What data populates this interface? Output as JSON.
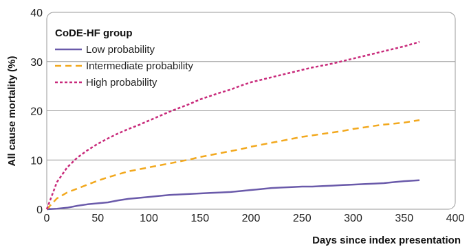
{
  "chart_data": {
    "type": "line",
    "xlabel": "Days since index presentation",
    "ylabel": "All cause mortality (%)",
    "xlim": [
      0,
      400
    ],
    "ylim": [
      0,
      40
    ],
    "x_ticks": [
      "0",
      "50",
      "100",
      "150",
      "200",
      "250",
      "300",
      "350",
      "400"
    ],
    "y_ticks": [
      "0",
      "10",
      "20",
      "30",
      "40"
    ],
    "grid": "horizontal",
    "legend": {
      "title": "CoDE-HF group",
      "placement": "top-left"
    },
    "series": [
      {
        "name": "Low probability",
        "color": "#6a5aaa",
        "dash": "solid",
        "x": [
          0,
          10,
          20,
          30,
          40,
          50,
          60,
          70,
          80,
          90,
          100,
          110,
          120,
          130,
          140,
          150,
          160,
          170,
          180,
          190,
          200,
          210,
          220,
          230,
          240,
          250,
          260,
          270,
          280,
          290,
          300,
          310,
          320,
          330,
          340,
          350,
          365
        ],
        "y": [
          0,
          0.1,
          0.3,
          0.7,
          1.0,
          1.2,
          1.4,
          1.8,
          2.1,
          2.3,
          2.5,
          2.7,
          2.9,
          3.0,
          3.1,
          3.2,
          3.3,
          3.4,
          3.5,
          3.7,
          3.9,
          4.1,
          4.3,
          4.4,
          4.5,
          4.6,
          4.6,
          4.7,
          4.8,
          4.9,
          5.0,
          5.1,
          5.2,
          5.3,
          5.5,
          5.7,
          5.9
        ]
      },
      {
        "name": "Intermediate probability",
        "color": "#f2a81d",
        "dash": "dashed",
        "x": [
          0,
          10,
          20,
          30,
          40,
          50,
          60,
          70,
          80,
          90,
          100,
          110,
          120,
          130,
          140,
          150,
          160,
          170,
          180,
          190,
          200,
          210,
          220,
          230,
          240,
          250,
          260,
          270,
          280,
          290,
          300,
          310,
          320,
          330,
          340,
          350,
          365
        ],
        "y": [
          0,
          2.2,
          3.4,
          4.2,
          5.0,
          5.8,
          6.5,
          7.1,
          7.7,
          8.1,
          8.5,
          8.9,
          9.3,
          9.7,
          10.1,
          10.6,
          11.0,
          11.4,
          11.8,
          12.2,
          12.7,
          13.1,
          13.5,
          13.9,
          14.3,
          14.7,
          15.0,
          15.3,
          15.6,
          15.9,
          16.3,
          16.6,
          16.9,
          17.2,
          17.4,
          17.6,
          18.1
        ]
      },
      {
        "name": "High probability",
        "color": "#c8297a",
        "dash": "dotted",
        "x": [
          0,
          10,
          20,
          30,
          40,
          50,
          60,
          70,
          80,
          90,
          100,
          110,
          120,
          130,
          140,
          150,
          160,
          170,
          180,
          190,
          200,
          210,
          220,
          230,
          240,
          250,
          260,
          270,
          280,
          290,
          300,
          310,
          320,
          330,
          340,
          350,
          365
        ],
        "y": [
          0,
          5.5,
          8.5,
          10.5,
          12.0,
          13.3,
          14.4,
          15.4,
          16.3,
          17.1,
          18.0,
          18.9,
          19.8,
          20.6,
          21.4,
          22.3,
          23.0,
          23.7,
          24.3,
          25.1,
          25.8,
          26.3,
          26.8,
          27.3,
          27.8,
          28.3,
          28.8,
          29.2,
          29.6,
          30.1,
          30.6,
          31.1,
          31.6,
          32.1,
          32.6,
          33.1,
          34.0
        ]
      }
    ]
  }
}
